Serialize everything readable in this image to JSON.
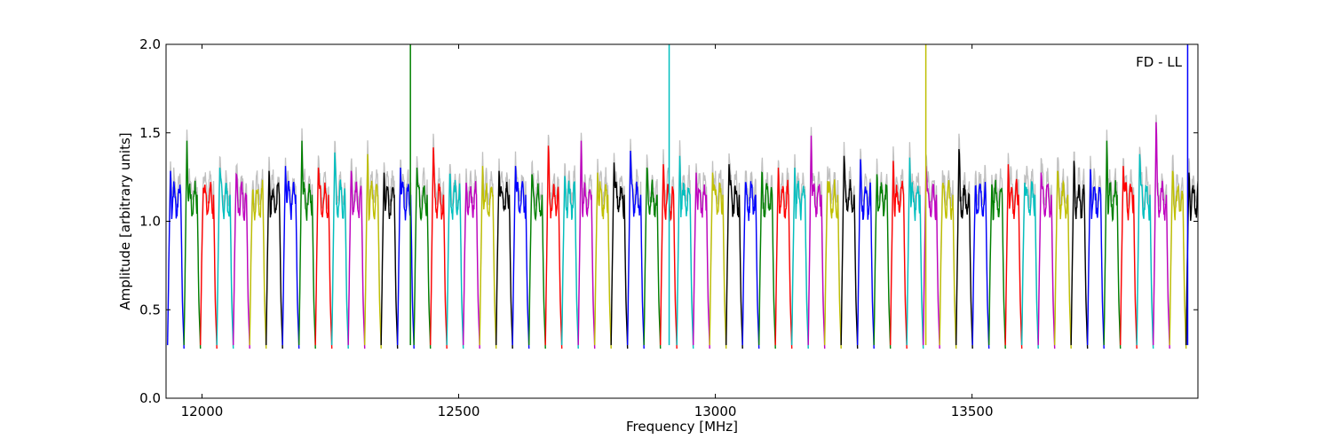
{
  "chart_data": {
    "type": "line",
    "title": "",
    "annotation": "FD - LL",
    "xlabel": "Frequency [MHz]",
    "ylabel": "Amplitude [arbitrary units]",
    "xlim": [
      11930,
      13940
    ],
    "ylim": [
      0.0,
      2.0
    ],
    "x_ticks": [
      12000,
      12500,
      13000,
      13500
    ],
    "x_tick_labels": [
      "12000",
      "12500",
      "13000",
      "13500"
    ],
    "y_ticks": [
      0.0,
      0.5,
      1.0,
      1.5,
      2.0
    ],
    "y_tick_labels": [
      "0.0",
      "0.5",
      "1.0",
      "1.5",
      "2.0"
    ],
    "grid": false,
    "legend": "none",
    "channel_width_mhz": 32,
    "channel_start_mhz": 11933,
    "channel_count": 63,
    "color_cycle": [
      "#0000ff",
      "#008000",
      "#ff0000",
      "#00bfbf",
      "#bf00bf",
      "#bfbf00",
      "#000000"
    ],
    "background_series_color": "#c0c0c0",
    "series_peaks": [
      1.31,
      1.49,
      1.21,
      1.33,
      1.29,
      1.19,
      1.31,
      1.34,
      1.49,
      1.33,
      1.42,
      1.31,
      1.41,
      1.3,
      1.33,
      1.33,
      1.45,
      1.29,
      1.24,
      1.34,
      1.31,
      1.34,
      1.29,
      1.46,
      1.28,
      1.49,
      1.3,
      1.36,
      1.43,
      1.33,
      1.35,
      1.4,
      1.3,
      1.3,
      1.35,
      1.24,
      1.3,
      1.33,
      1.33,
      1.52,
      1.25,
      1.4,
      1.38,
      1.29,
      1.37,
      1.39,
      1.34,
      1.22,
      1.44,
      1.22,
      1.23,
      1.35,
      1.24,
      1.3,
      1.31,
      1.37,
      1.32,
      1.49,
      1.34,
      1.41,
      1.6,
      1.31,
      1.3
    ],
    "spikes": [
      {
        "x": 12406,
        "y": 2.0,
        "color": "#008000"
      },
      {
        "x": 12910,
        "y": 2.0,
        "color": "#00bfbf"
      },
      {
        "x": 13410,
        "y": 2.0,
        "color": "#bfbf00"
      },
      {
        "x": 13920,
        "y": 2.0,
        "color": "#0000ff"
      }
    ]
  }
}
